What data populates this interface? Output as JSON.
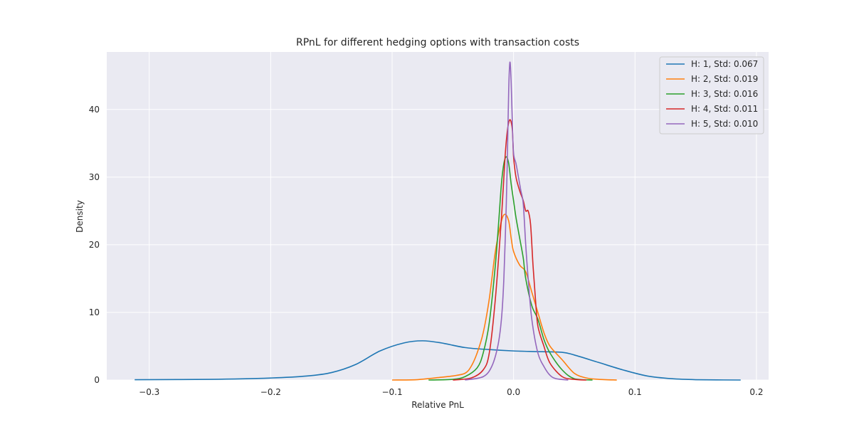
{
  "chart_data": {
    "type": "line",
    "title": "RPnL for different hedging options with transaction costs",
    "xlabel": "Relative PnL",
    "ylabel": "Density",
    "xlim": [
      -0.335,
      0.21
    ],
    "ylim": [
      0,
      48.5
    ],
    "x_ticks": [
      -0.3,
      -0.2,
      -0.1,
      0.0,
      0.1,
      0.2
    ],
    "x_tick_labels": [
      "−0.3",
      "−0.2",
      "−0.1",
      "0.0",
      "0.1",
      "0.2"
    ],
    "y_ticks": [
      0,
      10,
      20,
      30,
      40
    ],
    "y_tick_labels": [
      "0",
      "10",
      "20",
      "30",
      "40"
    ],
    "grid": true,
    "legend_position": "top-right",
    "series": [
      {
        "name": "H: 1, Std: 0.067",
        "color": "#1f77b4",
        "x": [
          -0.312,
          -0.25,
          -0.2,
          -0.17,
          -0.15,
          -0.13,
          -0.11,
          -0.09,
          -0.075,
          -0.06,
          -0.04,
          -0.02,
          0.0,
          0.02,
          0.04,
          0.05,
          0.07,
          0.09,
          0.11,
          0.13,
          0.15,
          0.187
        ],
        "y": [
          0.05,
          0.1,
          0.3,
          0.6,
          1.1,
          2.3,
          4.3,
          5.5,
          5.8,
          5.5,
          4.8,
          4.5,
          4.3,
          4.2,
          4.1,
          3.7,
          2.6,
          1.5,
          0.6,
          0.2,
          0.05,
          0.0
        ]
      },
      {
        "name": "H: 2, Std: 0.019",
        "color": "#ff7f0e",
        "x": [
          -0.1,
          -0.08,
          -0.06,
          -0.05,
          -0.04,
          -0.035,
          -0.03,
          -0.025,
          -0.02,
          -0.015,
          -0.01,
          -0.007,
          -0.004,
          -0.002,
          0.0,
          0.005,
          0.01,
          0.015,
          0.02,
          0.025,
          0.03,
          0.04,
          0.05,
          0.06,
          0.07,
          0.085
        ],
        "y": [
          0.0,
          0.05,
          0.4,
          0.6,
          1.0,
          2.0,
          4.0,
          7.0,
          12.0,
          19.0,
          23.5,
          24.5,
          23.5,
          21.0,
          19.0,
          17.0,
          16.0,
          13.0,
          10.0,
          7.0,
          5.0,
          3.0,
          1.0,
          0.3,
          0.1,
          0.0
        ]
      },
      {
        "name": "H: 3, Std: 0.016",
        "color": "#2ca02c",
        "x": [
          -0.07,
          -0.05,
          -0.04,
          -0.03,
          -0.025,
          -0.02,
          -0.015,
          -0.012,
          -0.01,
          -0.008,
          -0.006,
          -0.004,
          -0.002,
          0.0,
          0.002,
          0.005,
          0.008,
          0.01,
          0.015,
          0.02,
          0.025,
          0.03,
          0.04,
          0.05,
          0.065
        ],
        "y": [
          0.0,
          0.1,
          0.5,
          1.8,
          4.0,
          8.5,
          17.0,
          24.0,
          29.0,
          32.0,
          33.0,
          32.0,
          29.0,
          26.5,
          24.0,
          21.0,
          18.0,
          15.0,
          11.0,
          9.0,
          6.0,
          4.0,
          1.5,
          0.2,
          0.0
        ]
      },
      {
        "name": "H: 4, Std: 0.011",
        "color": "#d62728",
        "x": [
          -0.05,
          -0.035,
          -0.025,
          -0.02,
          -0.015,
          -0.01,
          -0.007,
          -0.005,
          -0.003,
          -0.001,
          0.0,
          0.002,
          0.005,
          0.008,
          0.01,
          0.012,
          0.014,
          0.016,
          0.018,
          0.02,
          0.025,
          0.03,
          0.04,
          0.05,
          0.06
        ],
        "y": [
          0.0,
          0.3,
          1.5,
          4.0,
          12.0,
          24.0,
          33.0,
          37.0,
          38.5,
          37.0,
          33.0,
          30.0,
          28.0,
          26.5,
          25.0,
          25.0,
          23.0,
          17.0,
          12.0,
          8.0,
          5.0,
          2.5,
          0.5,
          0.1,
          0.0
        ]
      },
      {
        "name": "H: 5, Std: 0.010",
        "color": "#9467bd",
        "x": [
          -0.04,
          -0.025,
          -0.018,
          -0.013,
          -0.01,
          -0.008,
          -0.006,
          -0.005,
          -0.004,
          -0.003,
          -0.002,
          -0.001,
          0.0,
          0.002,
          0.004,
          0.006,
          0.008,
          0.01,
          0.012,
          0.015,
          0.02,
          0.025,
          0.03,
          0.035,
          0.045
        ],
        "y": [
          0.0,
          0.5,
          2.0,
          5.0,
          9.0,
          15.0,
          26.0,
          34.0,
          43.0,
          47.0,
          44.0,
          38.0,
          33.5,
          32.0,
          30.0,
          28.0,
          26.0,
          20.0,
          15.0,
          9.0,
          4.0,
          2.0,
          0.7,
          0.2,
          0.0
        ]
      }
    ]
  }
}
